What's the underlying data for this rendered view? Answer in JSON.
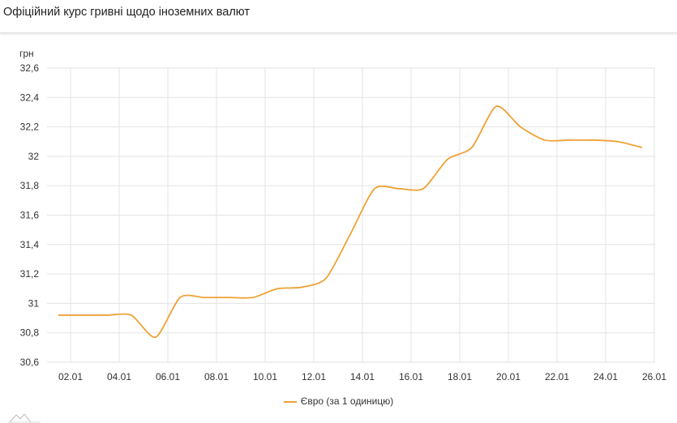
{
  "header": {
    "title": "Офіційний курс гривні щодо іноземних валют"
  },
  "chart_data": {
    "type": "line",
    "title": "",
    "xlabel": "",
    "ylabel": "грн",
    "ylim": [
      30.6,
      32.6
    ],
    "yticks": [
      "32,6",
      "32,4",
      "32,2",
      "32",
      "31,8",
      "31,6",
      "31,4",
      "31,2",
      "31",
      "30,8",
      "30,6"
    ],
    "xticks": [
      "02.01",
      "04.01",
      "06.01",
      "08.01",
      "10.01",
      "12.01",
      "14.01",
      "16.01",
      "18.01",
      "20.01",
      "22.01",
      "24.01",
      "26.01"
    ],
    "grid": true,
    "legend_position": "bottom",
    "color": "#eea236",
    "series": [
      {
        "name": "Євро (за 1 одиницю)",
        "x": [
          "01.01",
          "02.01",
          "03.01",
          "04.01",
          "05.01",
          "06.01",
          "07.01",
          "08.01",
          "09.01",
          "10.01",
          "11.01",
          "12.01",
          "13.01",
          "14.01",
          "15.01",
          "16.01",
          "17.01",
          "18.01",
          "19.01",
          "20.01",
          "21.01",
          "22.01",
          "23.01",
          "24.01",
          "25.01"
        ],
        "values": [
          30.92,
          30.92,
          30.92,
          30.92,
          30.77,
          31.04,
          31.04,
          31.04,
          31.04,
          31.1,
          31.11,
          31.17,
          31.47,
          31.78,
          31.78,
          31.78,
          31.98,
          32.06,
          32.34,
          32.2,
          32.11,
          32.11,
          32.11,
          32.1,
          32.06
        ]
      }
    ]
  }
}
